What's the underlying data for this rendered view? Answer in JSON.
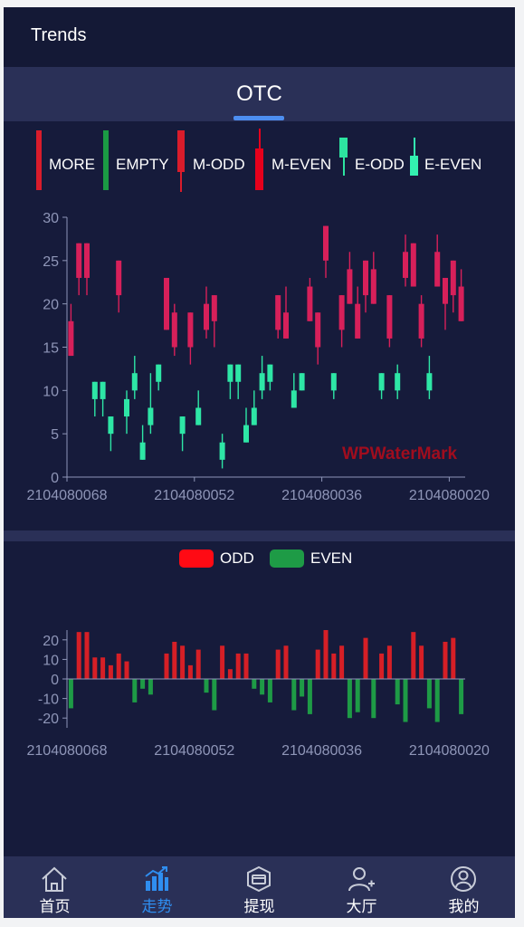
{
  "header": {
    "title": "Trends"
  },
  "tabs": [
    {
      "label": "OTC",
      "active": true
    }
  ],
  "colors": {
    "more": "#d91c2b",
    "empty": "#1b9a44",
    "m_odd": "#d91c2b",
    "m_even": "#e6001c",
    "e_odd": "#2de3a0",
    "e_even": "#33f0b0",
    "odd_candle": "#d7205a",
    "even_candle": "#2ee6a6",
    "odd_bar": "#d61f26",
    "even_bar": "#1e9b46",
    "axis": "#8f96b8",
    "active_nav": "#2f8ef0"
  },
  "legend_top": [
    {
      "label": "MORE",
      "color": "#d91c2b"
    },
    {
      "label": "EMPTY",
      "color": "#1b9a44"
    },
    {
      "label": "M-ODD",
      "color": "#d91c2b"
    },
    {
      "label": "M-EVEN",
      "color": "#e6001c"
    },
    {
      "label": "E-ODD",
      "color": "#2de3a0"
    },
    {
      "label": "E-EVEN",
      "color": "#33f0b0"
    }
  ],
  "legend_bottom": [
    {
      "label": "ODD",
      "color": "#ff0a14"
    },
    {
      "label": "EVEN",
      "color": "#1e9b46"
    }
  ],
  "watermark": "WPWaterMark",
  "chart_data": [
    {
      "type": "candlestick",
      "title": "",
      "xlabel": "",
      "ylabel": "",
      "ylim": [
        0,
        30
      ],
      "yticks": [
        0,
        5,
        10,
        15,
        20,
        25,
        30
      ],
      "xtick_labels": [
        "2104080068",
        "2104080052",
        "2104080036",
        "2104080020"
      ],
      "grid": false,
      "candles": [
        {
          "i": 0,
          "o": 14,
          "c": 18,
          "l": 14,
          "h": 20,
          "t": "odd"
        },
        {
          "i": 1,
          "o": 23,
          "c": 27,
          "l": 21,
          "h": 27,
          "t": "odd"
        },
        {
          "i": 2,
          "o": 23,
          "c": 27,
          "l": 21,
          "h": 27,
          "t": "odd"
        },
        {
          "i": 3,
          "o": 9,
          "c": 11,
          "l": 7,
          "h": 11,
          "t": "even"
        },
        {
          "i": 4,
          "o": 9,
          "c": 11,
          "l": 7,
          "h": 11,
          "t": "even"
        },
        {
          "i": 5,
          "o": 5,
          "c": 7,
          "l": 3,
          "h": 7,
          "t": "even"
        },
        {
          "i": 6,
          "o": 21,
          "c": 25,
          "l": 19,
          "h": 25,
          "t": "odd"
        },
        {
          "i": 7,
          "o": 7,
          "c": 9,
          "l": 5,
          "h": 10,
          "t": "even"
        },
        {
          "i": 8,
          "o": 10,
          "c": 12,
          "l": 9,
          "h": 14,
          "t": "even"
        },
        {
          "i": 9,
          "o": 2,
          "c": 4,
          "l": 2,
          "h": 6,
          "t": "even"
        },
        {
          "i": 10,
          "o": 6,
          "c": 8,
          "l": 5,
          "h": 12,
          "t": "even"
        },
        {
          "i": 11,
          "o": 11,
          "c": 13,
          "l": 10,
          "h": 13,
          "t": "even"
        },
        {
          "i": 12,
          "o": 17,
          "c": 23,
          "l": 17,
          "h": 23,
          "t": "odd"
        },
        {
          "i": 13,
          "o": 15,
          "c": 19,
          "l": 14,
          "h": 20,
          "t": "odd"
        },
        {
          "i": 14,
          "o": 5,
          "c": 7,
          "l": 3,
          "h": 7,
          "t": "even"
        },
        {
          "i": 15,
          "o": 15,
          "c": 19,
          "l": 13,
          "h": 19,
          "t": "odd"
        },
        {
          "i": 16,
          "o": 6,
          "c": 8,
          "l": 6,
          "h": 10,
          "t": "even"
        },
        {
          "i": 17,
          "o": 17,
          "c": 20,
          "l": 16,
          "h": 22,
          "t": "odd"
        },
        {
          "i": 18,
          "o": 18,
          "c": 21,
          "l": 15,
          "h": 21,
          "t": "odd"
        },
        {
          "i": 19,
          "o": 2,
          "c": 4,
          "l": 1,
          "h": 5,
          "t": "even"
        },
        {
          "i": 20,
          "o": 11,
          "c": 13,
          "l": 9,
          "h": 13,
          "t": "even"
        },
        {
          "i": 21,
          "o": 11,
          "c": 13,
          "l": 9,
          "h": 13,
          "t": "even"
        },
        {
          "i": 22,
          "o": 4,
          "c": 6,
          "l": 4,
          "h": 8,
          "t": "even"
        },
        {
          "i": 23,
          "o": 6,
          "c": 8,
          "l": 6,
          "h": 10,
          "t": "even"
        },
        {
          "i": 24,
          "o": 10,
          "c": 12,
          "l": 9,
          "h": 14,
          "t": "even"
        },
        {
          "i": 25,
          "o": 11,
          "c": 13,
          "l": 10,
          "h": 13,
          "t": "even"
        },
        {
          "i": 26,
          "o": 17,
          "c": 21,
          "l": 16,
          "h": 21,
          "t": "odd"
        },
        {
          "i": 27,
          "o": 16,
          "c": 19,
          "l": 16,
          "h": 22,
          "t": "odd"
        },
        {
          "i": 28,
          "o": 8,
          "c": 10,
          "l": 8,
          "h": 12,
          "t": "even"
        },
        {
          "i": 29,
          "o": 10,
          "c": 12,
          "l": 10,
          "h": 12,
          "t": "even"
        },
        {
          "i": 30,
          "o": 18,
          "c": 22,
          "l": 18,
          "h": 23,
          "t": "odd"
        },
        {
          "i": 31,
          "o": 15,
          "c": 19,
          "l": 13,
          "h": 19,
          "t": "odd"
        },
        {
          "i": 32,
          "o": 25,
          "c": 29,
          "l": 23,
          "h": 29,
          "t": "odd"
        },
        {
          "i": 33,
          "o": 10,
          "c": 12,
          "l": 9,
          "h": 12,
          "t": "even"
        },
        {
          "i": 34,
          "o": 17,
          "c": 21,
          "l": 15,
          "h": 21,
          "t": "odd"
        },
        {
          "i": 35,
          "o": 20,
          "c": 24,
          "l": 20,
          "h": 26,
          "t": "odd"
        },
        {
          "i": 36,
          "o": 16,
          "c": 20,
          "l": 16,
          "h": 22,
          "t": "odd"
        },
        {
          "i": 37,
          "o": 21,
          "c": 25,
          "l": 19,
          "h": 25,
          "t": "odd"
        },
        {
          "i": 38,
          "o": 20,
          "c": 24,
          "l": 20,
          "h": 26,
          "t": "odd"
        },
        {
          "i": 39,
          "o": 10,
          "c": 12,
          "l": 9,
          "h": 12,
          "t": "even"
        },
        {
          "i": 40,
          "o": 16,
          "c": 21,
          "l": 15,
          "h": 21,
          "t": "odd"
        },
        {
          "i": 41,
          "o": 10,
          "c": 12,
          "l": 9,
          "h": 13,
          "t": "even"
        },
        {
          "i": 42,
          "o": 23,
          "c": 26,
          "l": 22,
          "h": 28,
          "t": "odd"
        },
        {
          "i": 43,
          "o": 22,
          "c": 27,
          "l": 22,
          "h": 27,
          "t": "odd"
        },
        {
          "i": 44,
          "o": 16,
          "c": 20,
          "l": 15,
          "h": 21,
          "t": "odd"
        },
        {
          "i": 45,
          "o": 10,
          "c": 12,
          "l": 9,
          "h": 14,
          "t": "even"
        },
        {
          "i": 46,
          "o": 22,
          "c": 26,
          "l": 22,
          "h": 28,
          "t": "odd"
        },
        {
          "i": 47,
          "o": 20,
          "c": 23,
          "l": 17,
          "h": 23,
          "t": "odd"
        },
        {
          "i": 48,
          "o": 21,
          "c": 25,
          "l": 19,
          "h": 25,
          "t": "odd"
        },
        {
          "i": 49,
          "o": 18,
          "c": 22,
          "l": 18,
          "h": 24,
          "t": "odd"
        }
      ]
    },
    {
      "type": "bar",
      "title": "",
      "xlabel": "",
      "ylabel": "",
      "ylim": [
        -25,
        25
      ],
      "yticks": [
        -20,
        -10,
        0,
        10,
        20
      ],
      "xtick_labels": [
        "2104080068",
        "2104080052",
        "2104080036",
        "2104080020"
      ],
      "grid": false,
      "series": [
        {
          "type": "odd",
          "values": [
            0,
            24,
            24,
            11,
            11,
            7,
            13,
            9,
            0,
            0,
            0,
            0,
            13,
            19,
            17,
            7,
            15,
            0,
            0,
            17,
            5,
            13,
            13,
            0,
            0,
            0,
            15,
            17,
            0,
            0,
            0,
            15,
            25,
            13,
            17,
            0,
            0,
            21,
            0,
            13,
            17,
            0,
            0,
            24,
            17,
            0,
            0,
            19,
            21,
            0
          ]
        },
        {
          "type": "even",
          "values": [
            -15,
            0,
            0,
            0,
            0,
            0,
            0,
            0,
            -12,
            -5,
            -8,
            0,
            0,
            0,
            0,
            0,
            0,
            -7,
            -16,
            0,
            0,
            0,
            0,
            -5,
            -8,
            -12,
            0,
            0,
            -16,
            -9,
            -18,
            0,
            0,
            0,
            0,
            -20,
            -17,
            0,
            -20,
            0,
            0,
            -13,
            -22,
            0,
            0,
            -15,
            -22,
            0,
            0,
            -18
          ]
        }
      ]
    }
  ],
  "nav": [
    {
      "label": "首页",
      "icon": "home-icon",
      "active": false
    },
    {
      "label": "走势",
      "icon": "trend-chart-icon",
      "active": true
    },
    {
      "label": "提现",
      "icon": "withdraw-icon",
      "active": false
    },
    {
      "label": "大厅",
      "icon": "hall-user-icon",
      "active": false
    },
    {
      "label": "我的",
      "icon": "profile-icon",
      "active": false
    }
  ]
}
